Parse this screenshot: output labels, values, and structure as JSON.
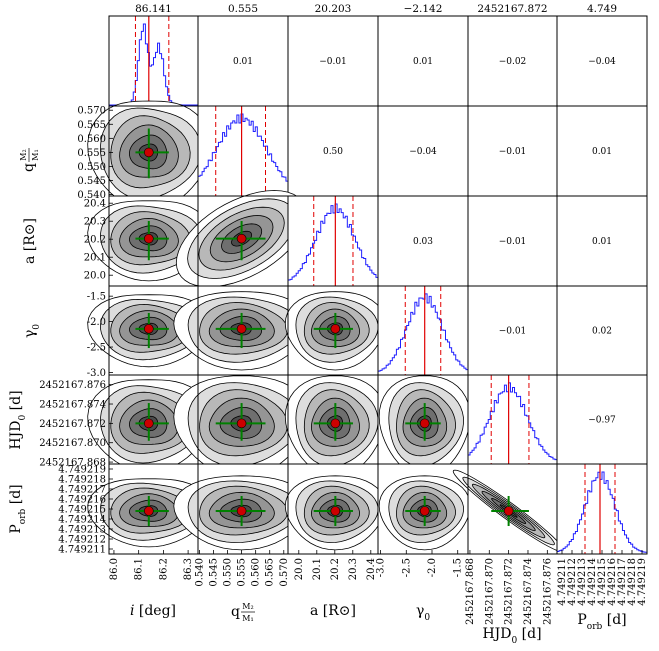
{
  "chart_data": {
    "type": "corner",
    "parameters": [
      {
        "label": "i [deg]",
        "median": "86.141",
        "lim": [
          85.98,
          86.34
        ],
        "ticks": [
          "86.0",
          "86.1",
          "86.2",
          "86.3"
        ],
        "mode": "bimodal"
      },
      {
        "label": "q M2/M1",
        "median": "0.555",
        "lim": [
          0.5395,
          0.5715
        ],
        "ticks": [
          "0.540",
          "0.545",
          "0.550",
          "0.555",
          "0.560",
          "0.565",
          "0.570"
        ],
        "mode": "normal"
      },
      {
        "label": "a [R⊙]",
        "median": "20.203",
        "lim": [
          19.94,
          20.44
        ],
        "ticks": [
          "20.0",
          "20.1",
          "20.2",
          "20.3",
          "20.4"
        ],
        "mode": "normal"
      },
      {
        "label": "γ0",
        "median": "−2.142",
        "lim": [
          -3.05,
          -1.3
        ],
        "ticks": [
          "-3.0",
          "-2.5",
          "-2.0",
          "-1.5"
        ],
        "mode": "normal"
      },
      {
        "label": "HJD0 [d]",
        "median": "2452167.872",
        "lim": [
          2452167.8678,
          2452167.877
        ],
        "ticks": [
          "2452167.868",
          "2452167.870",
          "2452167.872",
          "2452167.874",
          "2452167.876"
        ],
        "mode": "normal"
      },
      {
        "label": "Porb [d]",
        "median": "4.749",
        "lim": [
          4.7492105,
          4.7492195
        ],
        "ticks": [
          "4.749211",
          "4.749212",
          "4.749213",
          "4.749214",
          "4.749215",
          "4.749216",
          "4.749217",
          "4.749218",
          "4.749219"
        ],
        "mode": "normal"
      }
    ],
    "medians": [
      86.141,
      0.555,
      20.203,
      -2.142,
      2452167.872,
      4.7492148
    ],
    "sigma_low": [
      86.087,
      0.5458,
      20.083,
      -2.52,
      2452167.8702,
      4.7492133
    ],
    "sigma_high": [
      86.222,
      0.5635,
      20.301,
      -1.83,
      2452167.8741,
      4.7492163
    ],
    "correlations": [
      {
        "row": 1,
        "col": 2,
        "value": "0.01"
      },
      {
        "row": 1,
        "col": 3,
        "value": "−0.01"
      },
      {
        "row": 1,
        "col": 4,
        "value": "0.01"
      },
      {
        "row": 1,
        "col": 5,
        "value": "−0.02"
      },
      {
        "row": 1,
        "col": 6,
        "value": "−0.04"
      },
      {
        "row": 2,
        "col": 3,
        "value": "0.50"
      },
      {
        "row": 2,
        "col": 4,
        "value": "−0.04"
      },
      {
        "row": 2,
        "col": 5,
        "value": "−0.01"
      },
      {
        "row": 2,
        "col": 6,
        "value": "0.01"
      },
      {
        "row": 3,
        "col": 4,
        "value": "0.03"
      },
      {
        "row": 3,
        "col": 5,
        "value": "−0.01"
      },
      {
        "row": 3,
        "col": 6,
        "value": "0.01"
      },
      {
        "row": 4,
        "col": 5,
        "value": "−0.01"
      },
      {
        "row": 4,
        "col": 6,
        "value": "0.02"
      },
      {
        "row": 5,
        "col": 6,
        "value": "−0.97"
      }
    ],
    "colors": {
      "histogram": "#1f1fff",
      "median_line": "#e00000",
      "credible_lines": "#e00000",
      "cross": "#008000",
      "center_marker": "#cc0000",
      "contour_fills": [
        "#ffffff",
        "#dddddd",
        "#b8b8b8",
        "#959595",
        "#6f6f6f",
        "#4a4a4a"
      ]
    }
  }
}
